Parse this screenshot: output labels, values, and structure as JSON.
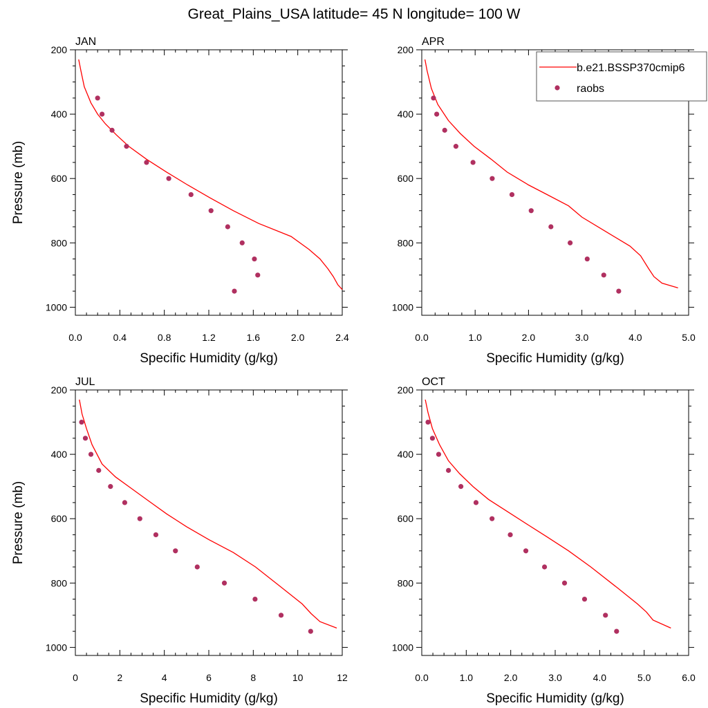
{
  "title": "Great_Plains_USA  latitude= 45 N longitude= 100 W",
  "legend": {
    "model": "b.e21.BSSP370cmip6",
    "obs": "raobs"
  },
  "colors": {
    "model_line": "#ff0000",
    "obs_marker": "#b03060"
  },
  "chart_data": [
    {
      "type": "line",
      "panel_title": "JAN",
      "xlabel": "Specific Humidity (g/kg)",
      "ylabel": "Pressure (mb)",
      "xlim": [
        0,
        2.4
      ],
      "ylim": [
        1025,
        200
      ],
      "xticks": [
        0,
        0.4,
        0.8,
        1.2,
        1.6,
        2.0,
        2.4
      ],
      "xticklabels": [
        "0.0",
        "0.4",
        "0.8",
        "1.2",
        "1.6",
        "2.0",
        "2.4"
      ],
      "yticks": [
        200,
        400,
        600,
        800,
        1000
      ],
      "yticklabels": [
        "200",
        "400",
        "600",
        "800",
        "1000"
      ],
      "series": [
        {
          "name": "b.e21.BSSP370cmip6",
          "x": [
            0.03,
            0.05,
            0.08,
            0.14,
            0.2,
            0.27,
            0.37,
            0.48,
            0.64,
            0.82,
            1.01,
            1.21,
            1.42,
            1.65,
            1.94,
            2.1,
            2.2,
            2.27,
            2.32,
            2.36,
            2.4
          ],
          "y": [
            230,
            265,
            315,
            365,
            400,
            430,
            465,
            500,
            540,
            580,
            620,
            660,
            700,
            740,
            780,
            820,
            850,
            880,
            905,
            930,
            945
          ]
        },
        {
          "name": "raobs",
          "x": [
            0.2,
            0.24,
            0.33,
            0.46,
            0.64,
            0.84,
            1.04,
            1.22,
            1.37,
            1.5,
            1.61,
            1.64,
            1.43
          ],
          "y": [
            350,
            400,
            450,
            500,
            550,
            600,
            650,
            700,
            750,
            800,
            850,
            900,
            950
          ]
        }
      ]
    },
    {
      "type": "line",
      "panel_title": "APR",
      "xlabel": "Specific Humidity (g/kg)",
      "ylabel": "",
      "xlim": [
        0,
        5.0
      ],
      "ylim": [
        1025,
        200
      ],
      "xticks": [
        0,
        1,
        2,
        3,
        4,
        5
      ],
      "xticklabels": [
        "0.0",
        "1.0",
        "2.0",
        "3.0",
        "4.0",
        "5.0"
      ],
      "yticks": [
        200,
        400,
        600,
        800,
        1000
      ],
      "yticklabels": [
        "200",
        "400",
        "600",
        "800",
        "1000"
      ],
      "series": [
        {
          "name": "b.e21.BSSP370cmip6",
          "x": [
            0.06,
            0.1,
            0.18,
            0.3,
            0.5,
            0.72,
            0.98,
            1.3,
            1.6,
            2.0,
            2.35,
            2.75,
            3.0,
            3.4,
            3.9,
            4.1,
            4.25,
            4.35,
            4.5,
            4.8
          ],
          "y": [
            230,
            265,
            320,
            370,
            420,
            460,
            500,
            540,
            580,
            620,
            650,
            685,
            720,
            760,
            810,
            840,
            880,
            905,
            925,
            940
          ]
        },
        {
          "name": "raobs",
          "x": [
            0.22,
            0.28,
            0.43,
            0.64,
            0.96,
            1.32,
            1.69,
            2.05,
            2.42,
            2.78,
            3.1,
            3.41,
            3.69
          ],
          "y": [
            350,
            400,
            450,
            500,
            550,
            600,
            650,
            700,
            750,
            800,
            850,
            900,
            950
          ]
        }
      ]
    },
    {
      "type": "line",
      "panel_title": "JUL",
      "xlabel": "Specific Humidity (g/kg)",
      "ylabel": "Pressure (mb)",
      "xlim": [
        0,
        12
      ],
      "ylim": [
        1025,
        200
      ],
      "xticks": [
        0,
        2,
        4,
        6,
        8,
        10,
        12
      ],
      "xticklabels": [
        "0",
        "2",
        "4",
        "6",
        "8",
        "10",
        "12"
      ],
      "yticks": [
        200,
        400,
        600,
        800,
        1000
      ],
      "yticklabels": [
        "200",
        "400",
        "600",
        "800",
        "1000"
      ],
      "series": [
        {
          "name": "b.e21.BSSP370cmip6",
          "x": [
            0.18,
            0.3,
            0.5,
            0.75,
            1.2,
            1.8,
            2.5,
            3.3,
            4.1,
            5.0,
            6.0,
            7.1,
            8.1,
            9.2,
            10.2,
            10.6,
            11.0,
            11.75
          ],
          "y": [
            230,
            275,
            320,
            370,
            430,
            470,
            505,
            545,
            585,
            625,
            665,
            705,
            750,
            810,
            865,
            895,
            920,
            940
          ]
        },
        {
          "name": "raobs",
          "x": [
            0.28,
            0.45,
            0.7,
            1.05,
            1.58,
            2.22,
            2.9,
            3.62,
            4.5,
            5.48,
            6.7,
            8.08,
            9.25,
            10.58
          ],
          "y": [
            300,
            350,
            400,
            450,
            500,
            550,
            600,
            650,
            700,
            750,
            800,
            850,
            900,
            950
          ]
        }
      ]
    },
    {
      "type": "line",
      "panel_title": "OCT",
      "xlabel": "Specific Humidity (g/kg)",
      "ylabel": "",
      "xlim": [
        0,
        6.0
      ],
      "ylim": [
        1025,
        200
      ],
      "xticks": [
        0,
        1,
        2,
        3,
        4,
        5,
        6
      ],
      "xticklabels": [
        "0.0",
        "1.0",
        "2.0",
        "3.0",
        "4.0",
        "5.0",
        "6.0"
      ],
      "yticks": [
        200,
        400,
        600,
        800,
        1000
      ],
      "yticklabels": [
        "200",
        "400",
        "600",
        "800",
        "1000"
      ],
      "series": [
        {
          "name": "b.e21.BSSP370cmip6",
          "x": [
            0.08,
            0.14,
            0.24,
            0.4,
            0.6,
            0.85,
            1.15,
            1.5,
            1.95,
            2.4,
            2.8,
            3.3,
            3.8,
            4.4,
            4.85,
            5.05,
            5.2,
            5.6
          ],
          "y": [
            230,
            270,
            320,
            370,
            420,
            460,
            500,
            540,
            580,
            620,
            655,
            700,
            750,
            815,
            865,
            890,
            915,
            940
          ]
        },
        {
          "name": "raobs",
          "x": [
            0.14,
            0.24,
            0.38,
            0.6,
            0.88,
            1.22,
            1.58,
            1.99,
            2.34,
            2.76,
            3.21,
            3.66,
            4.13,
            4.38
          ],
          "y": [
            300,
            350,
            400,
            450,
            500,
            550,
            600,
            650,
            700,
            750,
            800,
            850,
            900,
            950
          ]
        }
      ]
    }
  ]
}
